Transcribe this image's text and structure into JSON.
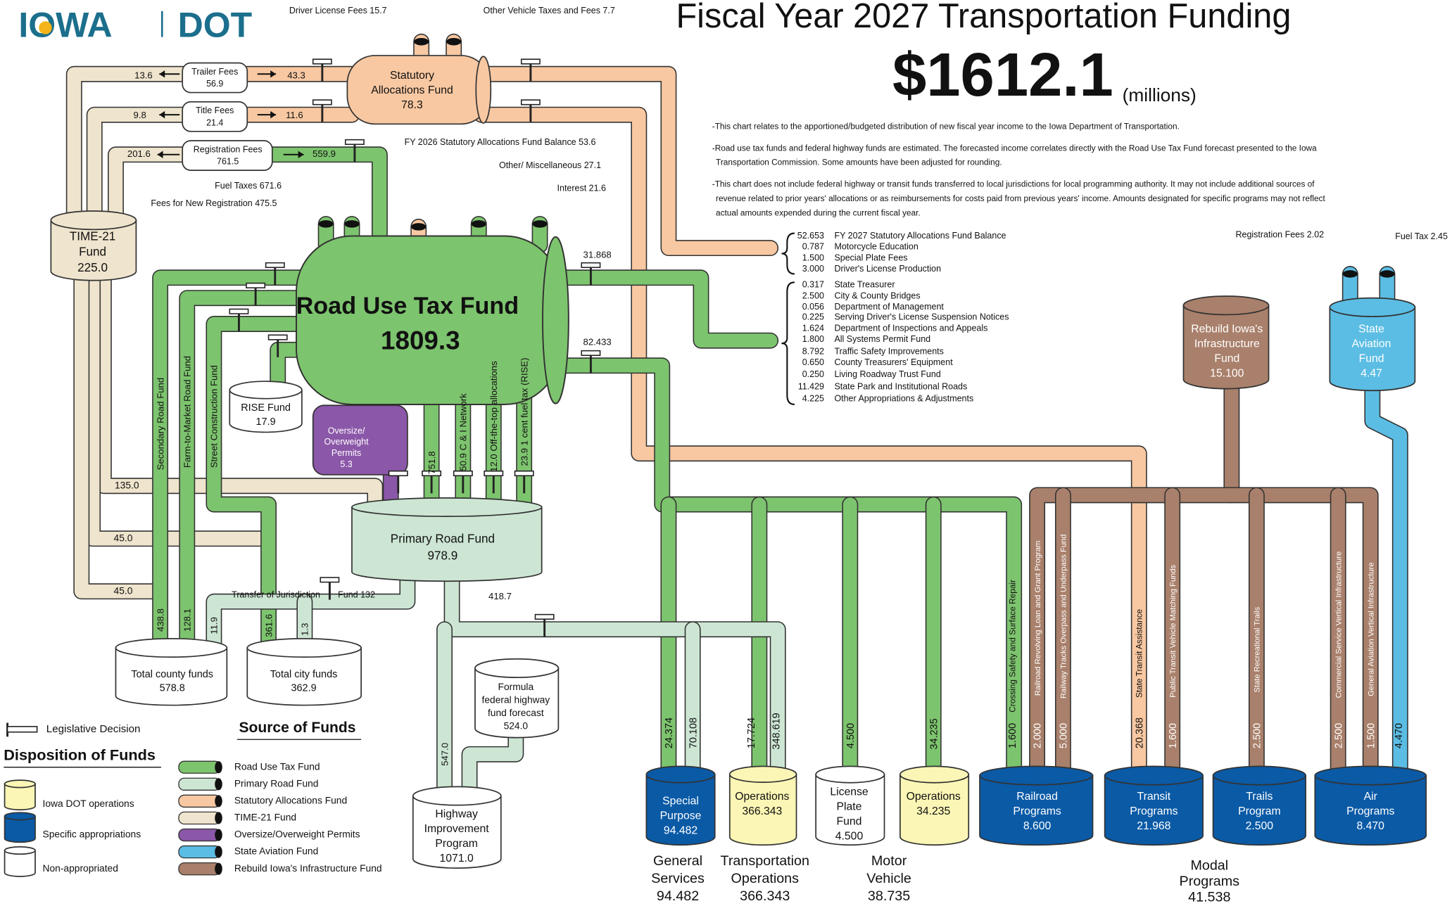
{
  "labels": {
    "logo_iowa": "IOWA",
    "logo_dot": "DOT",
    "title": "Fiscal Year 2027 Transportation Funding",
    "total": "$1612.1",
    "unit": "(millions)",
    "driver_license_fees": "Driver License Fees 15.7",
    "other_vehicle": "Other Vehicle Taxes and Fees 7.7",
    "trailer_fees": [
      "Trailer Fees",
      "56.9"
    ],
    "trailer_to_time": "13.6",
    "trailer_to_saf": "43.3",
    "title_fees": [
      "Title Fees",
      "21.4"
    ],
    "title_to_time": "9.8",
    "title_to_saf": "11.6",
    "registration_fees": [
      "Registration Fees",
      "761.5"
    ],
    "registration_to_time": "201.6",
    "registration_to_rutf": "559.9",
    "saf": [
      "Statutory",
      "Allocations Fund",
      "78.3"
    ],
    "saf_balance": "FY 2026 Statutory Allocations Fund Balance 53.6",
    "misc": "Other/  Miscellaneous 27.1",
    "interest": "Interest 21.6",
    "fuel_taxes": "Fuel Taxes 671.6",
    "new_registration": "Fees for New Registration 475.5",
    "time21": [
      "TIME-21",
      "Fund",
      "225.0"
    ],
    "rutf_name": "Road Use Tax Fund",
    "rutf_value": "1809.3",
    "to_statutory_list": "31.868",
    "to_appropriations": "82.433",
    "secondary_road": "Secondary Road Fund",
    "farm_to_market": "Farm-to-Market Road Fund",
    "street_construction": "Street Construction Fund",
    "rise": [
      "RISE Fund",
      "17.9"
    ],
    "oversize": [
      "Oversize/",
      "Overweight",
      "Permits",
      "5.3"
    ],
    "to_prf": "751.8",
    "c_i_network": "50.9 C & I Network",
    "off_top": "12.0  Off-the-top allocations",
    "one_cent": "23.9  1 cent fuel tax (RISE)",
    "time_to_prf": "135.0",
    "time_to_city": "45.0",
    "time_to_county": "45.0",
    "prf": [
      "Primary Road Fund",
      "978.9"
    ],
    "transfer_jurisdiction": "Transfer of Jurisdiction",
    "transfer_fund": "Fund 132",
    "prf_to_modal": "418.7",
    "to_county_secondary": "438.8",
    "to_county_ftm": "128.1",
    "to_county_transfer": "11.9",
    "to_city_street": "361.6",
    "to_city_transfer": "1.3",
    "county": [
      "Total county funds",
      "578.8"
    ],
    "city": [
      "Total city funds",
      "362.9"
    ],
    "formula": [
      "Formula",
      "federal highway",
      "fund forecast",
      "524.0"
    ],
    "prf_to_hip": "547.0",
    "hip": [
      "Highway",
      "Improvement",
      "Program",
      "1071.0"
    ],
    "legislative": "Legislative Decision",
    "source_heading": "Source of Funds",
    "disposition_heading": "Disposition of Funds",
    "disp_dot": "Iowa DOT operations",
    "disp_specific": "Specific appropriations",
    "disp_non": "Non-appropriated",
    "reg_fees_aviation": "Registration Fees 2.02",
    "fuel_tax_aviation": "Fuel Tax 2.45",
    "riif": [
      "Rebuild Iowa's",
      "Infrastructure",
      "Fund",
      "15.100"
    ],
    "aviation": [
      "State",
      "Aviation",
      "Fund",
      "4.47"
    ],
    "sp_general": "24.374",
    "sp_prf": "70.108",
    "ops_general": "17.724",
    "ops_prf": "348.619",
    "license_plate_amount": "4.500",
    "mv_ops_amount": "34.235",
    "rail_crossing_amount": "1.600",
    "rail_crossing_name": "Crossing Safety and Surface Repair",
    "rail_loan_amount": "2.000",
    "rail_loan_name": "Railroad Revolving Loan and Grant Program",
    "rail_over_amount": "5.000",
    "rail_over_name": "Railway Tracks Overpass and Underpass Fund",
    "transit_sta_amount": "20.368",
    "transit_sta_name": "State Transit Assistance",
    "transit_ptv_amount": "1.600",
    "transit_ptv_name": "Public Transit Vehicle Matching Funds",
    "trails_amount": "2.500",
    "trails_name": "State Recreational Trails",
    "air_csvi_amount": "2.500",
    "air_csvi_name": "Commercial Service Vertical Infrastructure",
    "air_gavi_amount": "1.500",
    "air_gavi_name": "General Aviation Vertical Infrastructure",
    "air_fuel_amount": "4.470",
    "special_purpose": [
      "Special",
      "Purpose",
      "94.482"
    ],
    "tops_ops": [
      "Operations",
      "366.343"
    ],
    "license_plate": [
      "License",
      "Plate",
      "Fund",
      "4.500"
    ],
    "mv_ops": [
      "Operations",
      "34.235"
    ],
    "railroad": [
      "Railroad",
      "Programs",
      "8.600"
    ],
    "transit": [
      "Transit",
      "Programs",
      "21.968"
    ],
    "trails": [
      "Trails",
      "Program",
      "2.500"
    ],
    "air": [
      "Air",
      "Programs",
      "8.470"
    ],
    "general_services": [
      "General",
      "Services",
      "94.482"
    ],
    "transportation_ops": [
      "Transportation",
      "Operations",
      "366.343"
    ],
    "motor_vehicle": [
      "Motor",
      "Vehicle",
      "38.735"
    ],
    "modal": [
      "Modal",
      "Programs",
      "41.538"
    ]
  },
  "notes": [
    [
      "-This chart relates to the apportioned/budgeted distribution of new fiscal year income to the Iowa Department of Transportation."
    ],
    [
      "-Road use tax funds and federal highway funds are estimated. The forecasted income correlates directly with the Road Use Tax Fund forecast presented to the Iowa",
      "Transportation Commission. Some amounts have been adjusted for rounding."
    ],
    [
      "-This chart does not include federal highway or transit funds transferred to local jurisdictions for local programming authority. It may not include additional sources of",
      "revenue related to prior years' allocations or as reimbursements for costs paid from previous years' income. Amounts designated for specific programs may not reflect",
      "actual amounts expended during the current fiscal year."
    ]
  ],
  "statutory_list": [
    {
      "amount": "52.653",
      "name": "FY 2027 Statutory Allocations Fund Balance"
    },
    {
      "amount": "0.787",
      "name": "Motorcycle Education"
    },
    {
      "amount": "1.500",
      "name": "Special Plate Fees"
    },
    {
      "amount": "3.000",
      "name": "Driver's License Production"
    }
  ],
  "appropriations": [
    {
      "amount": "0.317",
      "name": "State Treasurer"
    },
    {
      "amount": "2.500",
      "name": "City & County Bridges"
    },
    {
      "amount": "0.056",
      "name": "Department of Management"
    },
    {
      "amount": "0.225",
      "name": "Serving Driver's License Suspension Notices"
    },
    {
      "amount": "1.624",
      "name": "Department of Inspections and Appeals"
    },
    {
      "amount": "1.800",
      "name": "All Systems Permit Fund"
    },
    {
      "amount": "8.792",
      "name": "Traffic Safety Improvements"
    },
    {
      "amount": "0.650",
      "name": "County Treasurers' Equipment"
    },
    {
      "amount": "0.250",
      "name": "Living Roadway Trust Fund"
    },
    {
      "amount": "11.429",
      "name": "State Park and Institutional Roads"
    },
    {
      "amount": "4.225",
      "name": "Other Appropriations & Adjustments"
    }
  ],
  "source_legend": [
    {
      "name": "Road Use Tax Fund",
      "color": "#7dc46e"
    },
    {
      "name": "Primary Road Fund",
      "color": "#cde6d4"
    },
    {
      "name": "Statutory Allocations Fund",
      "color": "#f8c8a2"
    },
    {
      "name": "TIME-21 Fund",
      "color": "#efe4cd"
    },
    {
      "name": "Oversize/Overweight Permits",
      "color": "#8b57a8"
    },
    {
      "name": "State Aviation Fund",
      "color": "#5bbde4"
    },
    {
      "name": "Rebuild Iowa's Infrastructure Fund",
      "color": "#a9806b"
    }
  ]
}
